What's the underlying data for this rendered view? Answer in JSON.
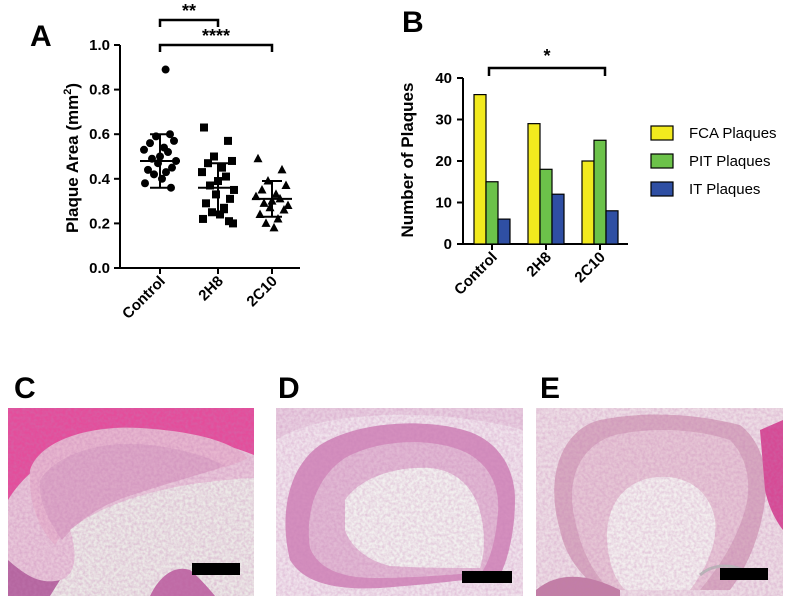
{
  "panel_labels": {
    "a": "A",
    "b": "B",
    "c": "C",
    "d": "D",
    "e": "E"
  },
  "chart_data": [
    {
      "panel": "A",
      "type": "scatter",
      "ylabel_main": "Plaque Area (mm",
      "ylabel_sup": "2",
      "ylabel_close": ")",
      "categories": [
        "Control",
        "2H8",
        "2C10"
      ],
      "ylim": [
        0.0,
        1.0
      ],
      "yticks": [
        "0.0",
        "0.2",
        "0.4",
        "0.6",
        "0.8",
        "1.0"
      ],
      "series": [
        {
          "category": "Control",
          "marker": "circle",
          "values": [
            0.89,
            0.6,
            0.59,
            0.57,
            0.56,
            0.54,
            0.53,
            0.52,
            0.5,
            0.49,
            0.48,
            0.47,
            0.45,
            0.44,
            0.43,
            0.42,
            0.4,
            0.38,
            0.36
          ],
          "mean": 0.48,
          "sd": 0.12
        },
        {
          "category": "2H8",
          "marker": "square",
          "values": [
            0.63,
            0.57,
            0.5,
            0.48,
            0.47,
            0.45,
            0.43,
            0.41,
            0.39,
            0.37,
            0.35,
            0.33,
            0.31,
            0.29,
            0.27,
            0.25,
            0.24,
            0.22,
            0.21,
            0.2
          ],
          "mean": 0.36,
          "sd": 0.11
        },
        {
          "category": "2C10",
          "marker": "triangle",
          "values": [
            0.49,
            0.44,
            0.39,
            0.37,
            0.35,
            0.33,
            0.32,
            0.31,
            0.3,
            0.29,
            0.28,
            0.27,
            0.26,
            0.24,
            0.22,
            0.2,
            0.18
          ],
          "mean": 0.31,
          "sd": 0.08
        }
      ],
      "significance": [
        {
          "from": "Control",
          "to": "2H8",
          "label": "**"
        },
        {
          "from": "Control",
          "to": "2C10",
          "label": "****"
        }
      ]
    },
    {
      "panel": "B",
      "type": "bar",
      "ylabel": "Number of Plaques",
      "categories": [
        "Control",
        "2H8",
        "2C10"
      ],
      "ylim": [
        0,
        40
      ],
      "yticks": [
        "0",
        "10",
        "20",
        "30",
        "40"
      ],
      "series": [
        {
          "name": "FCA Plaques",
          "color": "#f2ea1e",
          "values": [
            36,
            29,
            20
          ]
        },
        {
          "name": "PIT Plaques",
          "color": "#6cc24a",
          "values": [
            15,
            18,
            25
          ]
        },
        {
          "name": "IT Plaques",
          "color": "#2f4fa3",
          "values": [
            6,
            12,
            8
          ]
        }
      ],
      "significance": [
        {
          "from": "Control",
          "to": "2C10",
          "label": "*"
        }
      ],
      "legend_position": "right"
    }
  ],
  "colors": {
    "tissue_pink": "#d9589f",
    "lumen": "#f3f0ee",
    "scale_bar": "#000000"
  }
}
